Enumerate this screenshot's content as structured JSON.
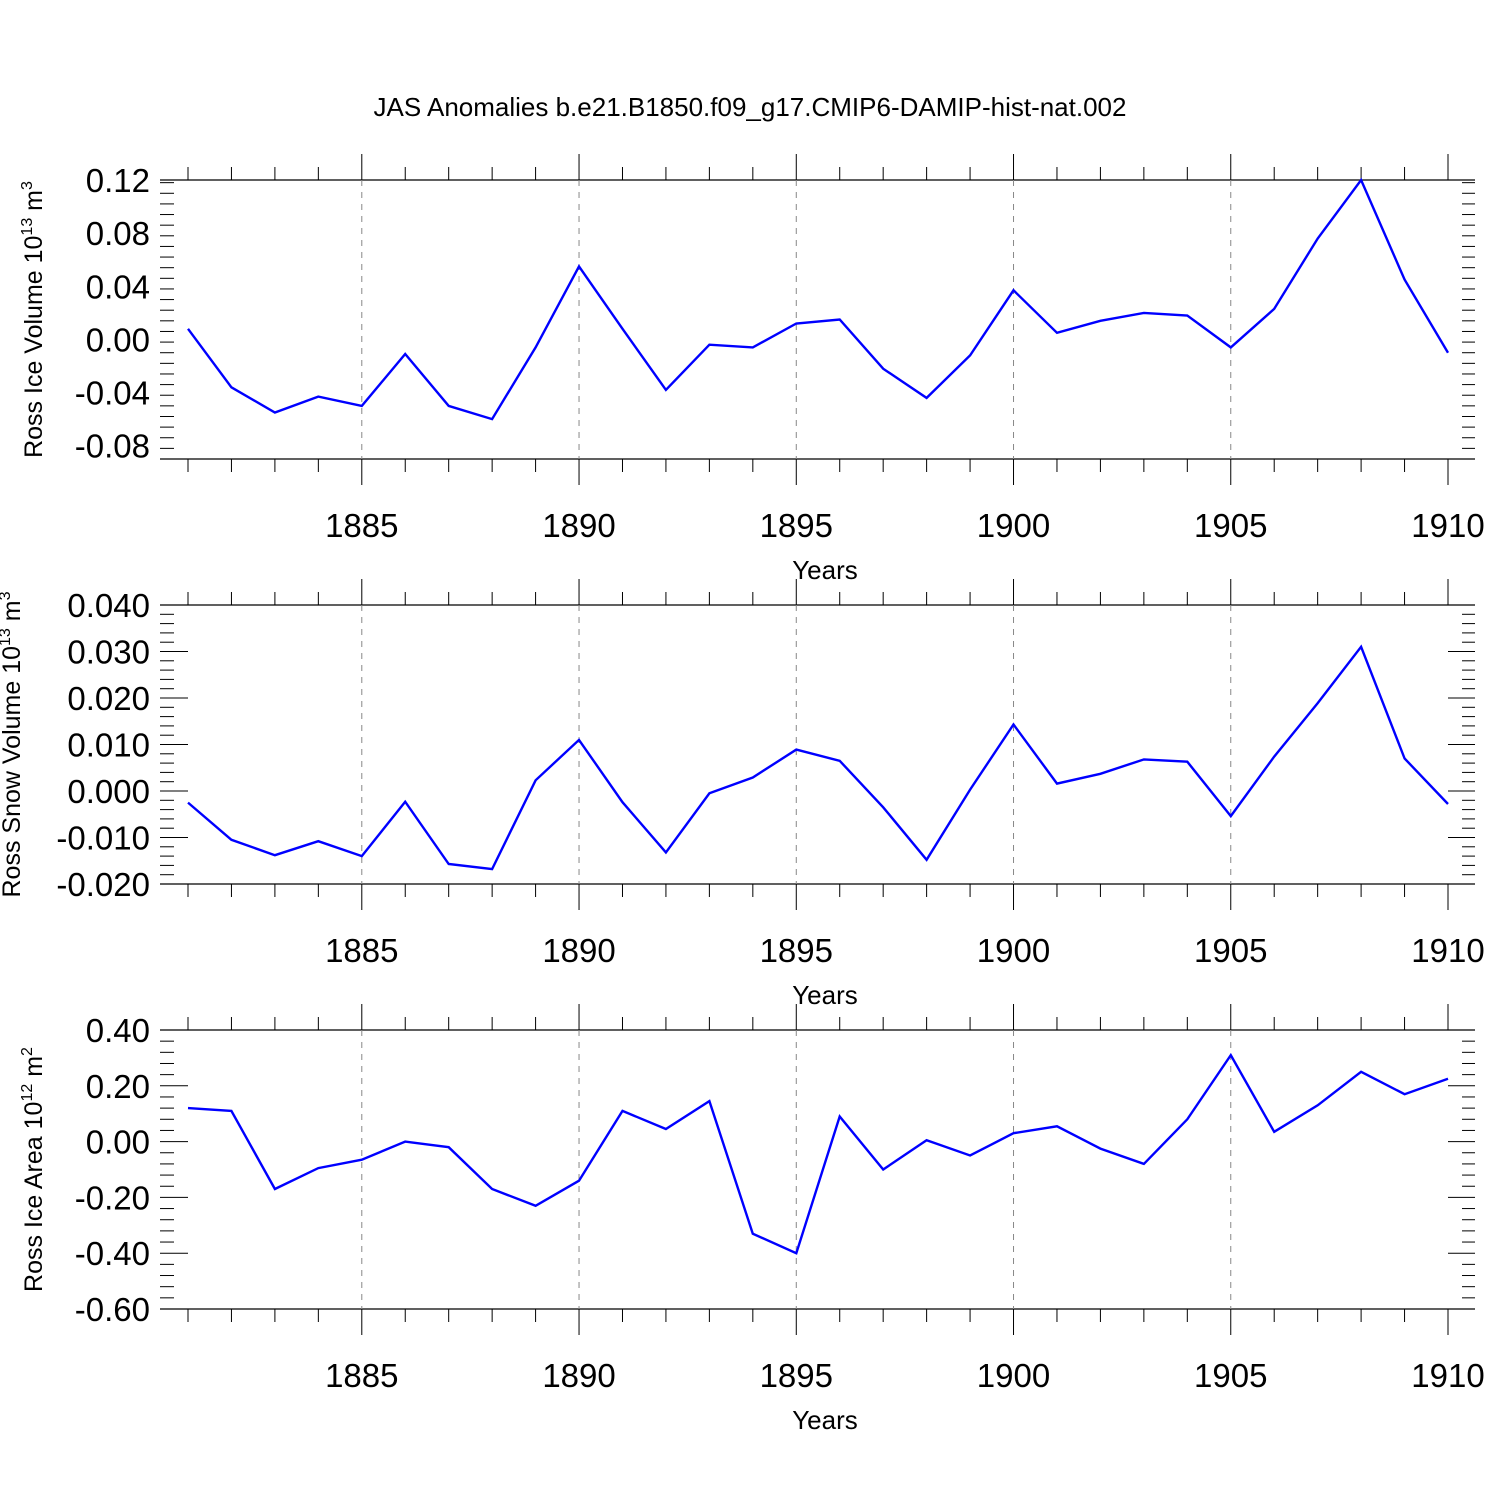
{
  "title": "JAS Anomalies b.e21.B1850.f09_g17.CMIP6-DAMIP-hist-nat.002",
  "line_color": "#0000ff",
  "chart_data": [
    {
      "type": "line",
      "xlabel": "Years",
      "ylabel": {
        "text": "Ross Ice Volume 10",
        "exp": "13",
        "unit": " m",
        "unit_exp": "3"
      },
      "xlim": [
        1881,
        1910
      ],
      "ylim": [
        -0.09,
        0.12
      ],
      "yticks": [
        "0.12",
        "0.08",
        "0.04",
        "0.00",
        "-0.04",
        "-0.08"
      ],
      "ytick_values": [
        0.12,
        0.08,
        0.04,
        0.0,
        -0.04,
        -0.08
      ],
      "xticks": [
        "1885",
        "1890",
        "1895",
        "1900",
        "1905",
        "1910"
      ],
      "xtick_values": [
        1885,
        1890,
        1895,
        1900,
        1905,
        1910
      ],
      "grid": "vertical dashed at major x ticks",
      "x": [
        1881,
        1882,
        1883,
        1884,
        1885,
        1886,
        1887,
        1888,
        1889,
        1890,
        1891,
        1892,
        1893,
        1894,
        1895,
        1896,
        1897,
        1898,
        1899,
        1900,
        1901,
        1902,
        1903,
        1904,
        1905,
        1906,
        1907,
        1908,
        1909,
        1910
      ],
      "values": [
        0.008,
        -0.036,
        -0.055,
        -0.043,
        -0.05,
        -0.011,
        -0.05,
        -0.06,
        -0.006,
        0.055,
        0.008,
        -0.038,
        -0.004,
        -0.006,
        0.012,
        0.015,
        -0.022,
        -0.044,
        -0.012,
        0.037,
        0.005,
        0.014,
        0.02,
        0.018,
        -0.006,
        0.023,
        0.076,
        0.12,
        0.045,
        -0.01
      ]
    },
    {
      "type": "line",
      "xlabel": "Years",
      "ylabel": {
        "text": "Ross Snow Volume 10",
        "exp": "13",
        "unit": " m",
        "unit_exp": "3"
      },
      "xlim": [
        1881,
        1910
      ],
      "ylim": [
        -0.02,
        0.04
      ],
      "yticks": [
        "0.040",
        "0.030",
        "0.020",
        "0.010",
        "0.000",
        "-0.010",
        "-0.020"
      ],
      "ytick_values": [
        0.04,
        0.03,
        0.02,
        0.01,
        0.0,
        -0.01,
        -0.02
      ],
      "xticks": [
        "1885",
        "1890",
        "1895",
        "1900",
        "1905",
        "1910"
      ],
      "xtick_values": [
        1885,
        1890,
        1895,
        1900,
        1905,
        1910
      ],
      "grid": "vertical dashed at major x ticks",
      "x": [
        1881,
        1882,
        1883,
        1884,
        1885,
        1886,
        1887,
        1888,
        1889,
        1890,
        1891,
        1892,
        1893,
        1894,
        1895,
        1896,
        1897,
        1898,
        1899,
        1900,
        1901,
        1902,
        1903,
        1904,
        1905,
        1906,
        1907,
        1908,
        1909,
        1910
      ],
      "values": [
        -0.0025,
        -0.0105,
        -0.0138,
        -0.0108,
        -0.014,
        -0.0023,
        -0.0157,
        -0.0168,
        0.0023,
        0.011,
        -0.0024,
        -0.0132,
        -0.0005,
        0.0029,
        0.0089,
        0.0065,
        -0.0035,
        -0.0148,
        0.0003,
        0.0143,
        0.0016,
        0.0037,
        0.0068,
        0.0063,
        -0.0054,
        0.0074,
        0.0189,
        0.031,
        0.007,
        -0.0028
      ]
    },
    {
      "type": "line",
      "xlabel": "Years",
      "ylabel": {
        "text": "Ross Ice Area 10",
        "exp": "12",
        "unit": " m",
        "unit_exp": "2"
      },
      "xlim": [
        1881,
        1910
      ],
      "ylim": [
        -0.6,
        0.4
      ],
      "yticks": [
        "0.40",
        "0.20",
        "0.00",
        "-0.20",
        "-0.40",
        "-0.60"
      ],
      "ytick_values": [
        0.4,
        0.2,
        0.0,
        -0.2,
        -0.4,
        -0.6
      ],
      "xticks": [
        "1885",
        "1890",
        "1895",
        "1900",
        "1905",
        "1910"
      ],
      "xtick_values": [
        1885,
        1890,
        1895,
        1900,
        1905,
        1910
      ],
      "grid": "vertical dashed at major x ticks",
      "x": [
        1881,
        1882,
        1883,
        1884,
        1885,
        1886,
        1887,
        1888,
        1889,
        1890,
        1891,
        1892,
        1893,
        1894,
        1895,
        1896,
        1897,
        1898,
        1899,
        1900,
        1901,
        1902,
        1903,
        1904,
        1905,
        1906,
        1907,
        1908,
        1909,
        1910
      ],
      "values": [
        0.12,
        0.11,
        -0.17,
        -0.095,
        -0.065,
        0.0,
        -0.02,
        -0.17,
        -0.23,
        -0.14,
        0.11,
        0.045,
        0.145,
        -0.33,
        -0.4,
        0.09,
        -0.1,
        0.005,
        -0.05,
        0.03,
        0.055,
        -0.025,
        -0.08,
        0.08,
        0.31,
        0.035,
        0.13,
        0.25,
        0.17,
        0.225
      ]
    }
  ]
}
